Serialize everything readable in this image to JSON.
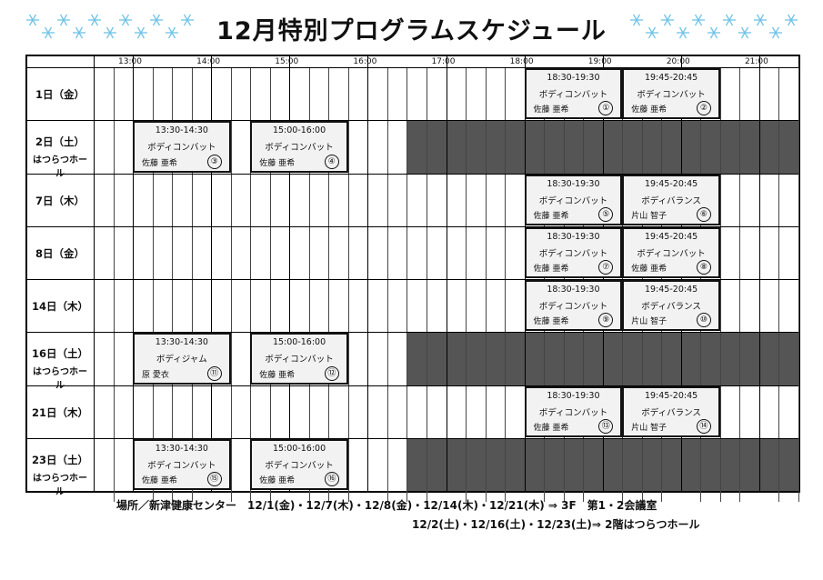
{
  "title": "12月特別プログラムスケジュール",
  "hours": [
    "13:00",
    "14:00",
    "15:00",
    "16:00",
    "17:00",
    "18:00",
    "19:00",
    "20:00",
    "21:00"
  ],
  "days": [
    {
      "date": "1日（金）",
      "venue": "",
      "shaded_from_col": null
    },
    {
      "date": "2日（土）",
      "venue": "はつらつホール",
      "shaded_from_col": 16
    },
    {
      "date": "7日（木）",
      "venue": "",
      "shaded_from_col": null
    },
    {
      "date": "8日（金）",
      "venue": "",
      "shaded_from_col": null
    },
    {
      "date": "14日（木）",
      "venue": "",
      "shaded_from_col": null
    },
    {
      "date": "16日（土）",
      "venue": "はつらつホール",
      "shaded_from_col": 16
    },
    {
      "date": "21日（木）",
      "venue": "",
      "shaded_from_col": null
    },
    {
      "date": "23日（土）",
      "venue": "はつらつホール",
      "shaded_from_col": 16
    }
  ],
  "events": [
    {
      "day": 0,
      "start": "18:30",
      "end": "19:30",
      "time": "18:30-19:30",
      "program": "ボディコンバット",
      "instructor": "佐藤 亜希",
      "num": "①"
    },
    {
      "day": 0,
      "start": "19:45",
      "end": "20:45",
      "time": "19:45-20:45",
      "program": "ボディコンバット",
      "instructor": "佐藤 亜希",
      "num": "②"
    },
    {
      "day": 1,
      "start": "13:30",
      "end": "14:30",
      "time": "13:30-14:30",
      "program": "ボディコンバット",
      "instructor": "佐藤 亜希",
      "num": "③"
    },
    {
      "day": 1,
      "start": "15:00",
      "end": "16:00",
      "time": "15:00-16:00",
      "program": "ボディコンバット",
      "instructor": "佐藤 亜希",
      "num": "④"
    },
    {
      "day": 2,
      "start": "18:30",
      "end": "19:30",
      "time": "18:30-19:30",
      "program": "ボディコンバット",
      "instructor": "佐藤 亜希",
      "num": "⑤"
    },
    {
      "day": 2,
      "start": "19:45",
      "end": "20:45",
      "time": "19:45-20:45",
      "program": "ボディバランス",
      "instructor": "片山 智子",
      "num": "⑥"
    },
    {
      "day": 3,
      "start": "18:30",
      "end": "19:30",
      "time": "18:30-19:30",
      "program": "ボディコンバット",
      "instructor": "佐藤 亜希",
      "num": "⑦"
    },
    {
      "day": 3,
      "start": "19:45",
      "end": "20:45",
      "time": "19:45-20:45",
      "program": "ボディコンバット",
      "instructor": "佐藤 亜希",
      "num": "⑧"
    },
    {
      "day": 4,
      "start": "18:30",
      "end": "19:30",
      "time": "18:30-19:30",
      "program": "ボディコンバット",
      "instructor": "佐藤 亜希",
      "num": "⑨"
    },
    {
      "day": 4,
      "start": "19:45",
      "end": "20:45",
      "time": "19:45-20:45",
      "program": "ボディバランス",
      "instructor": "片山 智子",
      "num": "⑩"
    },
    {
      "day": 5,
      "start": "13:30",
      "end": "14:30",
      "time": "13:30-14:30",
      "program": "ボディジャム",
      "instructor": "原 愛衣",
      "num": "⑪"
    },
    {
      "day": 5,
      "start": "15:00",
      "end": "16:00",
      "time": "15:00-16:00",
      "program": "ボディコンバット",
      "instructor": "佐藤 亜希",
      "num": "⑫"
    },
    {
      "day": 6,
      "start": "18:30",
      "end": "19:30",
      "time": "18:30-19:30",
      "program": "ボディコンバット",
      "instructor": "佐藤 亜希",
      "num": "⑬"
    },
    {
      "day": 6,
      "start": "19:45",
      "end": "20:45",
      "time": "19:45-20:45",
      "program": "ボディバランス",
      "instructor": "片山 智子",
      "num": "⑭"
    },
    {
      "day": 7,
      "start": "13:30",
      "end": "14:30",
      "time": "13:30-14:30",
      "program": "ボディコンバット",
      "instructor": "佐藤 亜希",
      "num": "⑮"
    },
    {
      "day": 7,
      "start": "15:00",
      "end": "16:00",
      "time": "15:00-16:00",
      "program": "ボディコンバット",
      "instructor": "佐藤 亜希",
      "num": "⑯"
    }
  ],
  "footer": {
    "line1": "場所／新津健康センター　12/1(金)・12/7(木)・12/8(金)・12/14(木)・12/21(木) ⇒ 3F　第1・2会議室",
    "line2": "12/2(土)・12/16(土)・12/23(土)⇒ 2階はつらつホール"
  },
  "colors": {
    "shaded": "#555555",
    "event_bg": "#f2f2f2",
    "snowflake": "#6fc3e6"
  }
}
